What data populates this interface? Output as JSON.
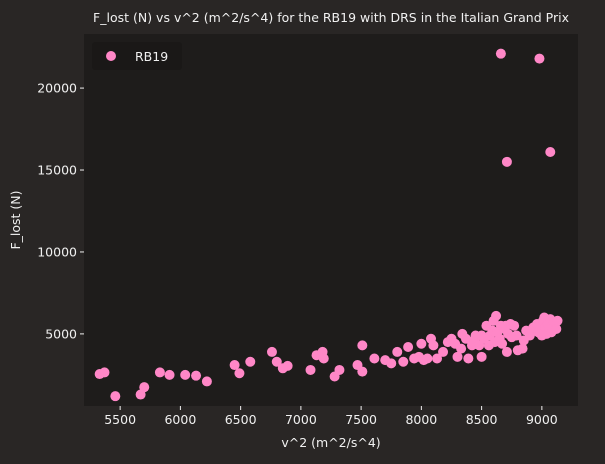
{
  "chart_data": {
    "type": "scatter",
    "title": "F_lost (N) vs v^2 (m^2/s^4) for the RB19 with DRS in the Italian Grand Prix",
    "xlabel": "v^2 (m^2/s^4)",
    "ylabel": "F_lost (N)",
    "xlim": [
      5200,
      9300
    ],
    "ylim": [
      600,
      23300
    ],
    "xticks": [
      5500,
      6000,
      6500,
      7000,
      7500,
      8000,
      8500,
      9000
    ],
    "yticks": [
      5000,
      10000,
      15000,
      20000
    ],
    "grid": false,
    "legend_position": "top-left",
    "colors": {
      "background": "#292625",
      "plot_background": "#1e1c1b",
      "marker": "#ff87c7",
      "text": "#f0f0f0"
    },
    "series": [
      {
        "name": "RB19",
        "color": "#ff87c7",
        "points": [
          [
            5330,
            2550
          ],
          [
            5370,
            2650
          ],
          [
            5460,
            1200
          ],
          [
            5670,
            1300
          ],
          [
            5700,
            1750
          ],
          [
            5830,
            2650
          ],
          [
            5910,
            2500
          ],
          [
            6040,
            2500
          ],
          [
            6130,
            2450
          ],
          [
            6220,
            2100
          ],
          [
            6450,
            3100
          ],
          [
            6490,
            2600
          ],
          [
            6580,
            3300
          ],
          [
            6760,
            3900
          ],
          [
            6800,
            3300
          ],
          [
            6850,
            2900
          ],
          [
            6890,
            3050
          ],
          [
            7080,
            2800
          ],
          [
            7130,
            3700
          ],
          [
            7180,
            3900
          ],
          [
            7190,
            3500
          ],
          [
            7280,
            2400
          ],
          [
            7320,
            2800
          ],
          [
            7470,
            3100
          ],
          [
            7510,
            2700
          ],
          [
            7510,
            4300
          ],
          [
            7610,
            3500
          ],
          [
            7700,
            3400
          ],
          [
            7750,
            3200
          ],
          [
            7800,
            3900
          ],
          [
            7850,
            3300
          ],
          [
            7890,
            4200
          ],
          [
            7940,
            3500
          ],
          [
            7980,
            3600
          ],
          [
            8000,
            4400
          ],
          [
            8020,
            3400
          ],
          [
            8050,
            3500
          ],
          [
            8080,
            4700
          ],
          [
            8100,
            4300
          ],
          [
            8130,
            3500
          ],
          [
            8180,
            3900
          ],
          [
            8220,
            4500
          ],
          [
            8250,
            4700
          ],
          [
            8280,
            4400
          ],
          [
            8300,
            3600
          ],
          [
            8330,
            4100
          ],
          [
            8340,
            5000
          ],
          [
            8370,
            4700
          ],
          [
            8390,
            3500
          ],
          [
            8420,
            4300
          ],
          [
            8440,
            4600
          ],
          [
            8450,
            4900
          ],
          [
            8480,
            4300
          ],
          [
            8500,
            3600
          ],
          [
            8500,
            4900
          ],
          [
            8520,
            4700
          ],
          [
            8540,
            5500
          ],
          [
            8560,
            4300
          ],
          [
            8570,
            4900
          ],
          [
            8590,
            5200
          ],
          [
            8600,
            5800
          ],
          [
            8610,
            4500
          ],
          [
            8620,
            6100
          ],
          [
            8630,
            5100
          ],
          [
            8650,
            4700
          ],
          [
            8660,
            5500
          ],
          [
            8670,
            4400
          ],
          [
            8690,
            5300
          ],
          [
            8700,
            5500
          ],
          [
            8710,
            3900
          ],
          [
            8720,
            5000
          ],
          [
            8740,
            5600
          ],
          [
            8750,
            4800
          ],
          [
            8770,
            5500
          ],
          [
            8790,
            4900
          ],
          [
            8800,
            4000
          ],
          [
            8840,
            4100
          ],
          [
            8850,
            4600
          ],
          [
            8870,
            5200
          ],
          [
            8900,
            4900
          ],
          [
            8930,
            5400
          ],
          [
            8960,
            5600
          ],
          [
            8970,
            5100
          ],
          [
            8990,
            5300
          ],
          [
            9000,
            4900
          ],
          [
            9010,
            5800
          ],
          [
            9020,
            6000
          ],
          [
            9030,
            5400
          ],
          [
            9040,
            5000
          ],
          [
            9050,
            5600
          ],
          [
            9060,
            5300
          ],
          [
            9070,
            5900
          ],
          [
            9080,
            5100
          ],
          [
            9100,
            5700
          ],
          [
            9120,
            5300
          ],
          [
            9130,
            5800
          ],
          [
            8660,
            22100
          ],
          [
            8980,
            21800
          ],
          [
            8710,
            15500
          ],
          [
            9070,
            16100
          ]
        ]
      }
    ]
  }
}
